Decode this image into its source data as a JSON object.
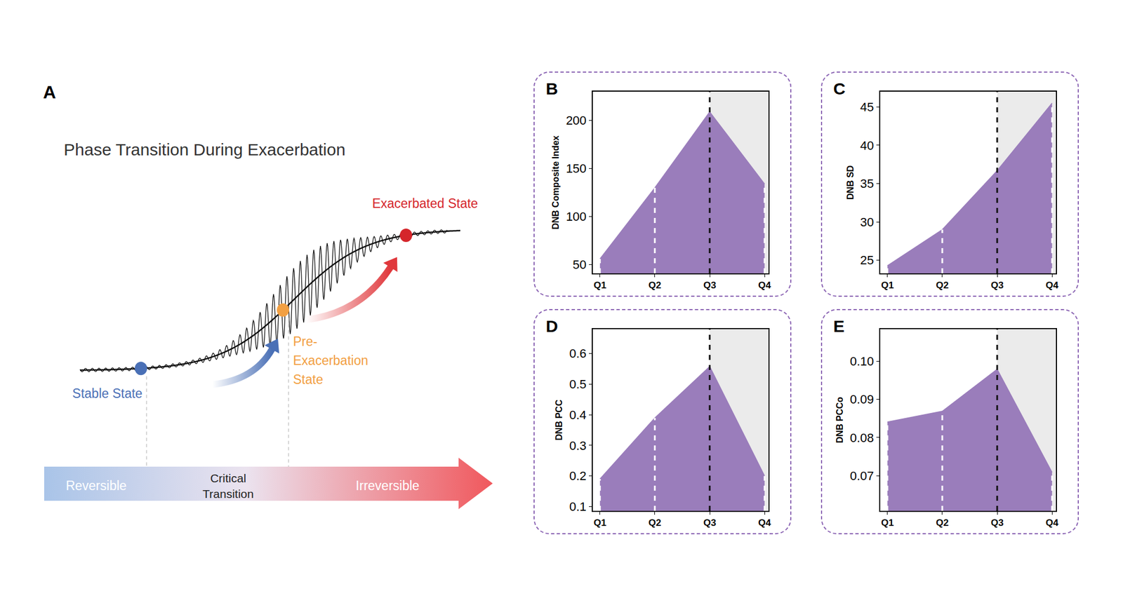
{
  "diagram": {
    "panel": "A",
    "title": "Phase Transition During Exacerbation",
    "states": [
      {
        "label": [
          "Stable State"
        ],
        "color": "#4a70b6"
      },
      {
        "label": [
          "Pre-",
          "Exacerbation",
          "State"
        ],
        "color": "#f2a043"
      },
      {
        "label": [
          "Exacerbated State"
        ],
        "color": "#d5262b"
      }
    ],
    "phases": [
      [
        "Reversible"
      ],
      [
        "Critical",
        "Transition"
      ],
      [
        "Irreversible"
      ]
    ]
  },
  "chart_data": [
    {
      "panel": "B",
      "type": "area",
      "categories": [
        "Q1",
        "Q2",
        "Q3",
        "Q4"
      ],
      "values": [
        56,
        130,
        209,
        134
      ],
      "y_label": "DNB Composite Index",
      "ylim": [
        41,
        230
      ],
      "yticks": [
        50,
        100,
        150,
        200
      ],
      "color": "#9a7dbb",
      "grid": false
    },
    {
      "panel": "C",
      "type": "area",
      "categories": [
        "Q1",
        "Q2",
        "Q3",
        "Q4"
      ],
      "values": [
        24.3,
        29.0,
        36.7,
        45.5
      ],
      "y_label": "DNB SD",
      "ylim": [
        23.3,
        47
      ],
      "yticks": [
        25,
        30,
        35,
        40,
        45
      ],
      "color": "#9a7dbb",
      "grid": false
    },
    {
      "panel": "D",
      "type": "area",
      "categories": [
        "Q1",
        "Q2",
        "Q3",
        "Q4"
      ],
      "values": [
        0.19,
        0.39,
        0.558,
        0.2
      ],
      "y_label": "DNB PCC",
      "ylim": [
        0.086,
        0.68
      ],
      "yticks": [
        0.1,
        0.2,
        0.3,
        0.4,
        0.5,
        0.6
      ],
      "color": "#9a7dbb",
      "grid": false
    },
    {
      "panel": "E",
      "type": "area",
      "categories": [
        "Q1",
        "Q2",
        "Q3",
        "Q4"
      ],
      "values": [
        0.0841,
        0.0869,
        0.0979,
        0.0709
      ],
      "y_label": "DNB PCCo",
      "ylim": [
        0.0608,
        0.1084
      ],
      "yticks": [
        0.07,
        0.08,
        0.09,
        {
          "value": 0.1,
          "label": "0.10"
        }
      ],
      "color": "#9a7dbb",
      "grid": false
    }
  ]
}
